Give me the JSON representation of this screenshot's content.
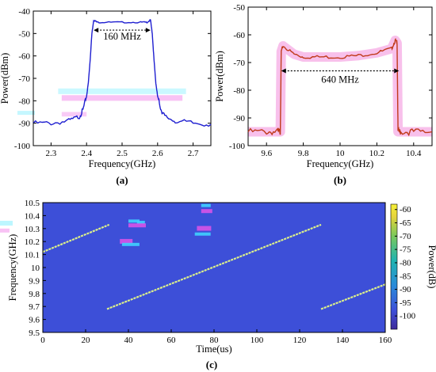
{
  "chart_data": [
    {
      "type": "line",
      "caption": "(a)",
      "xlabel": "Frequency(GHz)",
      "ylabel": "Power(dBm)",
      "xlim": [
        2.25,
        2.75
      ],
      "ylim": [
        -100,
        -40
      ],
      "xticks": [
        2.3,
        2.4,
        2.5,
        2.6,
        2.7
      ],
      "yticks": [
        -100,
        -90,
        -80,
        -70,
        -60,
        -50,
        -40
      ],
      "grid": false,
      "annotation": "160 MHz",
      "annotation_span": [
        2.42,
        2.58
      ],
      "annotation_level": -48.5,
      "colors": {
        "line": "#1f1fd0",
        "artifact_pink": "#f5a8f0",
        "artifact_cyan": "#9ff2ff"
      },
      "series": [
        {
          "x": [
            2.25,
            2.3,
            2.35,
            2.38,
            2.39,
            2.4,
            2.405,
            2.41,
            2.415,
            2.42,
            2.43,
            2.45,
            2.5,
            2.55,
            2.57,
            2.58,
            2.585,
            2.59,
            2.595,
            2.6,
            2.61,
            2.62,
            2.65,
            2.7,
            2.75
          ],
          "y": [
            -90,
            -90,
            -89,
            -87,
            -84,
            -78,
            -72,
            -62,
            -50,
            -44,
            -45,
            -45,
            -45,
            -45,
            -45,
            -44,
            -50,
            -62,
            -72,
            -78,
            -84,
            -87,
            -89,
            -90,
            -90.5
          ]
        }
      ]
    },
    {
      "type": "line",
      "caption": "(b)",
      "xlabel": "Frequency(GHz)",
      "ylabel": "Power(dBm)",
      "xlim": [
        9.5,
        10.5
      ],
      "ylim": [
        -100,
        -50
      ],
      "xticks": [
        9.6,
        9.8,
        10,
        10.2,
        10.4
      ],
      "yticks": [
        -100,
        -90,
        -80,
        -70,
        -60,
        -50
      ],
      "grid": false,
      "annotation": "640 MHz",
      "annotation_span": [
        9.68,
        10.32
      ],
      "annotation_level": -73,
      "colors": {
        "line": "#c03a1a",
        "band": "#f7b5e8"
      },
      "series": [
        {
          "x": [
            9.5,
            9.6,
            9.66,
            9.675,
            9.68,
            9.69,
            9.75,
            9.8,
            9.9,
            10.0,
            10.1,
            10.2,
            10.28,
            10.3,
            10.31,
            10.315,
            10.33,
            10.4,
            10.5
          ],
          "y": [
            -95,
            -95,
            -95,
            -95,
            -66,
            -64,
            -67,
            -68,
            -68,
            -68,
            -67.5,
            -66.5,
            -65,
            -62,
            -63,
            -95,
            -95,
            -95,
            -95
          ]
        }
      ]
    },
    {
      "type": "heatmap",
      "caption": "(c)",
      "xlabel": "Time(us)",
      "ylabel": "Frequency(GHz)",
      "xlim": [
        0,
        160
      ],
      "ylim": [
        9.5,
        10.5
      ],
      "xticks": [
        0,
        20,
        40,
        60,
        80,
        100,
        120,
        140,
        160
      ],
      "yticks": [
        9.5,
        9.6,
        9.7,
        9.8,
        9.9,
        10,
        10.1,
        10.2,
        10.3,
        10.4,
        10.5
      ],
      "colorbar": {
        "label": "Power(dB)",
        "range": [
          -105,
          -58
        ],
        "ticks": [
          -60,
          -65,
          -70,
          -75,
          -80,
          -85,
          -90,
          -95,
          -100
        ]
      },
      "background_power": -100,
      "colors": {
        "background": "#3d4fd8",
        "chirp": "#dcf08a"
      },
      "chirps": [
        {
          "t": [
            0,
            31
          ],
          "f": [
            10.12,
            10.33
          ]
        },
        {
          "t": [
            30,
            130
          ],
          "f": [
            9.68,
            10.33
          ]
        },
        {
          "t": [
            130,
            160
          ],
          "f": [
            9.68,
            9.87
          ]
        }
      ]
    }
  ]
}
